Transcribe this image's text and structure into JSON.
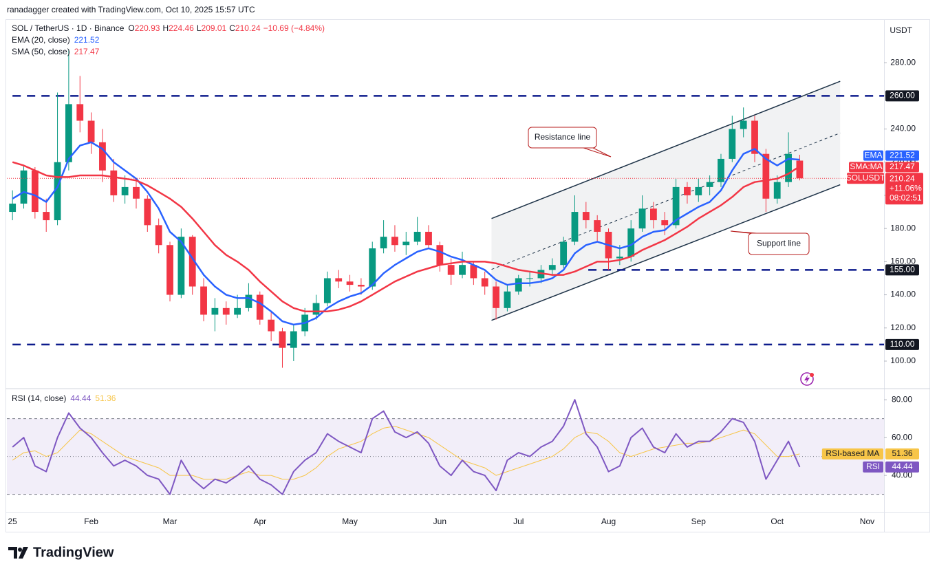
{
  "chart_data": {
    "type": "candlestick",
    "attribution": "ranadagger created with TradingView.com, Oct 10, 2025 15:57 UTC",
    "title": "SOL / TetherUS · 1D · Binance",
    "ohlc_legend": [
      {
        "label": "O",
        "value": 220.93
      },
      {
        "label": "H",
        "value": 224.46
      },
      {
        "label": "L",
        "value": 209.01
      },
      {
        "label": "C",
        "value": 210.24
      }
    ],
    "change": "−10.69 (−4.84%)",
    "currency": "USDT",
    "colors": {
      "up": "#089981",
      "down": "#f23645"
    },
    "categories": [
      "25",
      null,
      null,
      null,
      null,
      null,
      null,
      "Feb",
      null,
      null,
      null,
      null,
      null,
      null,
      "Mar",
      null,
      null,
      null,
      null,
      null,
      null,
      null,
      "Apr",
      null,
      null,
      null,
      null,
      null,
      null,
      null,
      "May",
      null,
      null,
      null,
      null,
      null,
      null,
      null,
      "Jun",
      null,
      null,
      null,
      null,
      null,
      null,
      "Jul",
      null,
      null,
      null,
      null,
      null,
      null,
      null,
      "Aug",
      null,
      null,
      null,
      null,
      null,
      null,
      null,
      "Sep",
      null,
      null,
      null,
      null,
      null,
      null,
      "Oct",
      null,
      null,
      null,
      null,
      null,
      null,
      null,
      "Nov",
      null
    ],
    "ohlc": [
      [
        190,
        203,
        185,
        195
      ],
      [
        195,
        218,
        192,
        215
      ],
      [
        215,
        217,
        186,
        190
      ],
      [
        190,
        198,
        178,
        185
      ],
      [
        185,
        262,
        182,
        220
      ],
      [
        220,
        288,
        215,
        255
      ],
      [
        255,
        272,
        238,
        245
      ],
      [
        245,
        250,
        225,
        232
      ],
      [
        232,
        240,
        208,
        215
      ],
      [
        215,
        222,
        196,
        200
      ],
      [
        200,
        212,
        195,
        205
      ],
      [
        205,
        210,
        192,
        198
      ],
      [
        198,
        200,
        178,
        182
      ],
      [
        182,
        186,
        165,
        170
      ],
      [
        170,
        172,
        136,
        140
      ],
      [
        140,
        180,
        138,
        175
      ],
      [
        175,
        176,
        140,
        145
      ],
      [
        145,
        150,
        124,
        128
      ],
      [
        128,
        138,
        118,
        132
      ],
      [
        132,
        136,
        122,
        128
      ],
      [
        128,
        140,
        126,
        132
      ],
      [
        132,
        147,
        130,
        140
      ],
      [
        140,
        142,
        122,
        125
      ],
      [
        125,
        130,
        112,
        118
      ],
      [
        118,
        120,
        96,
        108
      ],
      [
        108,
        122,
        100,
        118
      ],
      [
        118,
        132,
        115,
        128
      ],
      [
        128,
        140,
        125,
        135
      ],
      [
        135,
        154,
        133,
        150
      ],
      [
        150,
        155,
        144,
        148
      ],
      [
        148,
        152,
        142,
        146
      ],
      [
        146,
        150,
        140,
        145
      ],
      [
        145,
        172,
        143,
        168
      ],
      [
        168,
        185,
        165,
        175
      ],
      [
        175,
        182,
        166,
        170
      ],
      [
        170,
        178,
        164,
        172
      ],
      [
        172,
        187,
        170,
        178
      ],
      [
        178,
        182,
        168,
        170
      ],
      [
        170,
        172,
        154,
        158
      ],
      [
        158,
        162,
        146,
        152
      ],
      [
        152,
        166,
        150,
        158
      ],
      [
        158,
        160,
        146,
        150
      ],
      [
        150,
        154,
        140,
        145
      ],
      [
        145,
        148,
        125,
        132
      ],
      [
        132,
        146,
        130,
        142
      ],
      [
        142,
        152,
        140,
        150
      ],
      [
        150,
        154,
        145,
        150
      ],
      [
        150,
        158,
        147,
        155
      ],
      [
        155,
        162,
        152,
        158
      ],
      [
        158,
        175,
        156,
        172
      ],
      [
        172,
        200,
        170,
        190
      ],
      [
        190,
        196,
        180,
        185
      ],
      [
        185,
        188,
        172,
        178
      ],
      [
        178,
        180,
        155,
        162
      ],
      [
        162,
        170,
        158,
        163
      ],
      [
        163,
        185,
        160,
        180
      ],
      [
        180,
        200,
        178,
        192
      ],
      [
        192,
        196,
        180,
        185
      ],
      [
        185,
        190,
        176,
        182
      ],
      [
        182,
        210,
        180,
        205
      ],
      [
        205,
        208,
        195,
        200
      ],
      [
        200,
        210,
        196,
        205
      ],
      [
        205,
        212,
        200,
        208
      ],
      [
        208,
        225,
        205,
        222
      ],
      [
        222,
        248,
        220,
        240
      ],
      [
        240,
        253,
        235,
        245
      ],
      [
        245,
        248,
        220,
        225
      ],
      [
        225,
        228,
        190,
        198
      ],
      [
        198,
        212,
        195,
        208
      ],
      [
        208,
        238,
        205,
        225
      ],
      [
        220.93,
        224.46,
        209.01,
        210.24
      ],
      null,
      null,
      null,
      null,
      null,
      null,
      null
    ],
    "series": [
      {
        "name": "EMA (20, close)",
        "tag": "EMA",
        "color": "#2962ff",
        "values": [
          198,
          202,
          200,
          196,
          205,
          222,
          230,
          232,
          228,
          220,
          215,
          210,
          202,
          192,
          178,
          172,
          162,
          152,
          145,
          140,
          138,
          138,
          135,
          130,
          124,
          122,
          123,
          126,
          132,
          136,
          139,
          141,
          146,
          153,
          158,
          162,
          166,
          168,
          166,
          163,
          161,
          158,
          155,
          149,
          146,
          147,
          147,
          148,
          150,
          155,
          165,
          170,
          172,
          170,
          168,
          170,
          175,
          178,
          179,
          185,
          189,
          193,
          196,
          203,
          215,
          225,
          228,
          222,
          218,
          222,
          221.52,
          null,
          null,
          null,
          null,
          null,
          null,
          null
        ]
      },
      {
        "name": "SMA (50, close)",
        "tag": "SMA:MA",
        "color": "#f23645",
        "values": [
          220,
          218,
          215,
          212,
          211,
          211,
          212,
          212,
          212,
          211,
          210,
          209,
          206,
          202,
          198,
          193,
          186,
          178,
          170,
          164,
          160,
          155,
          148,
          142,
          136,
          132,
          130,
          130,
          130,
          131,
          133,
          136,
          140,
          144,
          148,
          151,
          154,
          156,
          158,
          159,
          160,
          160,
          160,
          159,
          157,
          155,
          154,
          153,
          152,
          152,
          154,
          157,
          160,
          160,
          161,
          163,
          167,
          170,
          173,
          177,
          181,
          186,
          190,
          194,
          199,
          205,
          208,
          209,
          210,
          213,
          217.47,
          null,
          null,
          null,
          null,
          null,
          null,
          null
        ]
      }
    ],
    "price_tag": {
      "name": "SOLUSDT",
      "change": "+11.06%",
      "countdown": "08:02:51"
    },
    "ylim": [
      83.8,
      306.2
    ],
    "yticks": [
      {
        "value": 100,
        "label": "100.00"
      },
      {
        "value": 120,
        "label": "120.00"
      },
      {
        "value": 140,
        "label": "140.00"
      },
      {
        "value": 160,
        "label": "160.00"
      },
      {
        "value": 180,
        "label": "180.00"
      },
      {
        "value": 200,
        "label": "200.00"
      },
      {
        "value": 220,
        "label": "220.00"
      },
      {
        "value": 240,
        "label": "240.00"
      },
      {
        "value": 260,
        "label": "260.00"
      },
      {
        "value": 280,
        "label": "280.00"
      }
    ],
    "levels": [
      {
        "value": 260,
        "label": "260.00",
        "from": 0
      },
      {
        "value": 155,
        "label": "155.00",
        "from": 51.2
      },
      {
        "value": 110,
        "label": "110.00",
        "from": 0
      }
    ],
    "channel": {
      "resistance": [
        [
          42.6,
          186
        ],
        [
          73.6,
          268.8
        ]
      ],
      "support": [
        [
          42.6,
          124.6
        ],
        [
          73.6,
          206.4
        ]
      ],
      "median": [
        [
          42.6,
          155.3
        ],
        [
          73.6,
          237.6
        ]
      ]
    },
    "annotations": [
      {
        "text": "Resistance line"
      },
      {
        "text": "Support line"
      }
    ],
    "rsi": {
      "title": "RSI (14, close)",
      "series": [
        {
          "name": "RSI",
          "color": "#7e57c2",
          "values": [
            55,
            60,
            45,
            42,
            60,
            73,
            65,
            60,
            52,
            45,
            48,
            45,
            40,
            38,
            30,
            48,
            38,
            33,
            38,
            36,
            40,
            45,
            38,
            35,
            30,
            42,
            48,
            52,
            62,
            58,
            55,
            52,
            70,
            74,
            63,
            60,
            63,
            57,
            45,
            40,
            48,
            42,
            40,
            32,
            48,
            52,
            50,
            55,
            58,
            66,
            80,
            62,
            55,
            42,
            45,
            60,
            65,
            55,
            52,
            62,
            55,
            58,
            58,
            63,
            70,
            68,
            58,
            38,
            48,
            58,
            44.44,
            null,
            null,
            null,
            null,
            null,
            null,
            null
          ]
        },
        {
          "name": "RSI-based MA",
          "color": "#f7c548",
          "values": [
            48,
            52,
            53,
            50,
            52,
            58,
            64,
            62,
            58,
            54,
            50,
            48,
            46,
            44,
            40,
            40,
            40,
            38,
            38,
            38,
            40,
            42,
            40,
            40,
            38,
            38,
            40,
            44,
            50,
            54,
            56,
            58,
            62,
            65,
            66,
            64,
            62,
            60,
            56,
            52,
            48,
            46,
            44,
            40,
            42,
            44,
            46,
            48,
            50,
            54,
            60,
            63,
            62,
            58,
            52,
            50,
            52,
            54,
            55,
            56,
            57,
            57,
            58,
            60,
            62,
            64,
            62,
            56,
            50,
            50,
            51.36,
            null,
            null,
            null,
            null,
            null,
            null,
            null
          ]
        }
      ],
      "ylim": [
        20.4,
        85.5
      ],
      "yticks": [
        {
          "value": 40,
          "label": "40.00"
        },
        {
          "value": 60,
          "label": "60.00"
        },
        {
          "value": 80,
          "label": "80.00"
        }
      ],
      "levels": [
        30,
        50,
        70
      ]
    },
    "brand": "TradingView"
  }
}
